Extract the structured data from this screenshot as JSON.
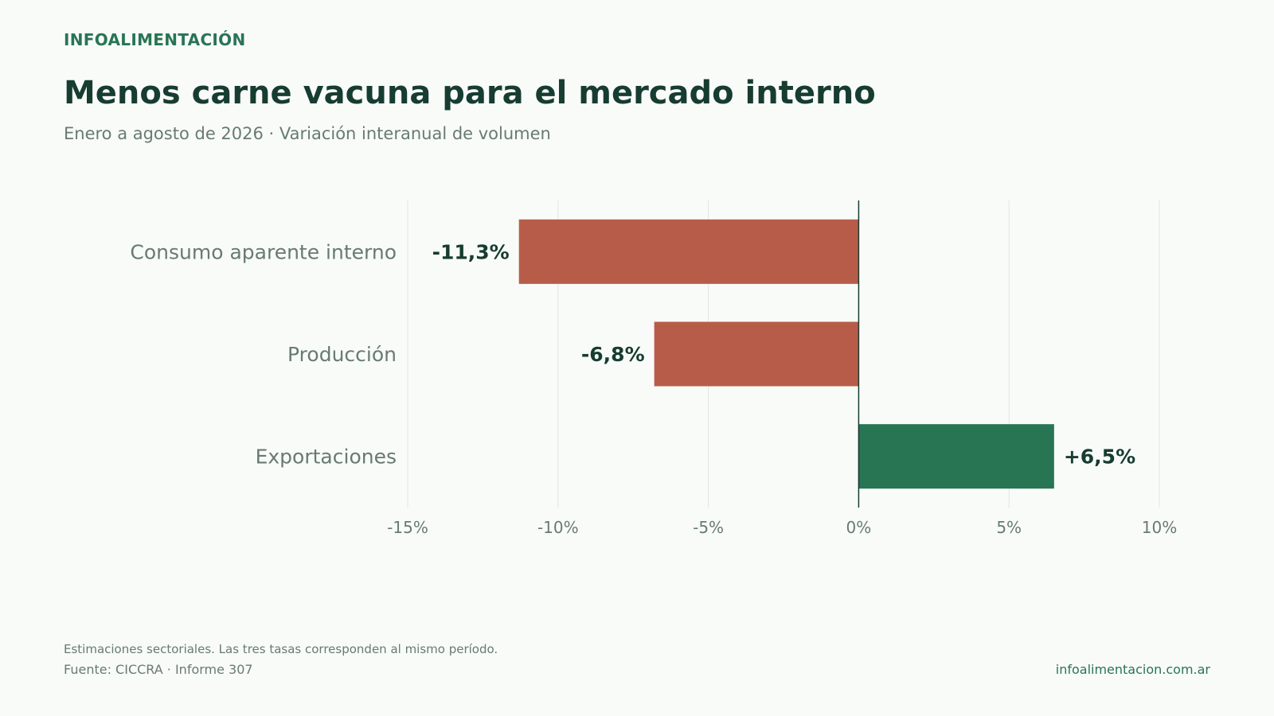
{
  "header": {
    "brand": "INFOALIMENTACIÓN",
    "title": "Menos carne vacuna para el mercado interno",
    "subtitle": "Enero a agosto de 2026 · Variación interanual de volumen"
  },
  "chart_data": {
    "type": "bar",
    "orientation": "horizontal",
    "categories": [
      "Consumo aparente interno",
      "Producción",
      "Exportaciones"
    ],
    "values": [
      -11.3,
      -6.8,
      6.5
    ],
    "value_labels": [
      "-11,3%",
      "-6,8%",
      "+6,5%"
    ],
    "xlim": [
      -15,
      10
    ],
    "xticks": [
      -15,
      -10,
      -5,
      0,
      5,
      10
    ],
    "xtick_labels": [
      "-15%",
      "-10%",
      "-5%",
      "0%",
      "5%",
      "10%"
    ],
    "grid": "vertical",
    "colors": {
      "negative": "#b85c4a",
      "positive": "#287554",
      "zero_line": "#173c31",
      "grid": "#e2e6e3",
      "category_text": "#677b73",
      "value_text": "#173c31",
      "tick_text": "#677b73"
    }
  },
  "footer": {
    "note": "Estimaciones sectoriales. Las tres tasas corresponden al mismo período.",
    "source": "Fuente: CICCRA · Informe 307",
    "site": "infoalimentacion.com.ar"
  }
}
